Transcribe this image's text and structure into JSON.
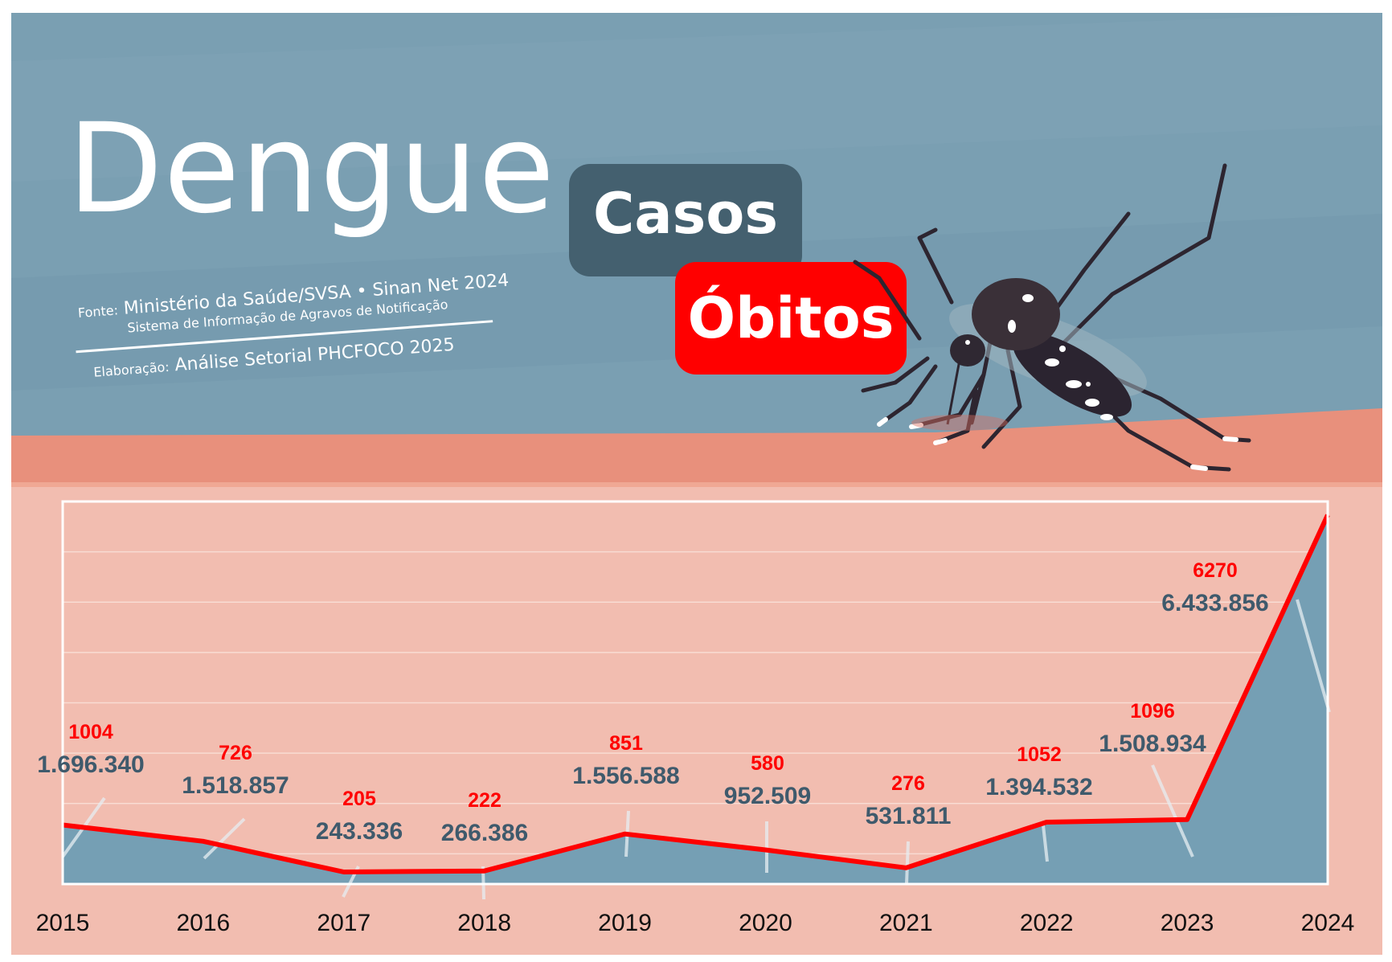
{
  "header": {
    "title": "Dengue",
    "source_prefix": "Fonte:",
    "source": "Ministério da Saúde/SVSA • Sinan Net 2024",
    "source_detail": "Sistema de Informação de Agravos de Notificação",
    "elaboration_prefix": "Elaboração:",
    "elaboration": "Análise Setorial PHCFOCO 2025"
  },
  "legend": {
    "cases_label": "Casos",
    "deaths_label": "Óbitos"
  },
  "colors": {
    "sky": "#7a9fb2",
    "skin_top": "#e8907c",
    "chart_bg": "#f2bdb0",
    "cases_area": "#759fb4",
    "deaths_line": "#ff0000",
    "cases_text": "#3f5a6c",
    "badge_cases": "#44606f",
    "badge_deaths": "#ff0000"
  },
  "illustration": {
    "icon": "aedes-mosquito-icon"
  },
  "chart_data": {
    "type": "area",
    "categories": [
      "2015",
      "2016",
      "2017",
      "2018",
      "2019",
      "2020",
      "2021",
      "2022",
      "2023",
      "2024"
    ],
    "series": [
      {
        "name": "Casos",
        "values": [
          1696340,
          1518857,
          243336,
          266386,
          1556588,
          952509,
          531811,
          1394532,
          1508934,
          6433856
        ],
        "labels": [
          "1.696.340",
          "1.518.857",
          "243.336",
          "266.386",
          "1.556.588",
          "952.509",
          "531.811",
          "1.394.532",
          "1.508.934",
          "6.433.856"
        ]
      },
      {
        "name": "Óbitos",
        "values": [
          1004,
          726,
          205,
          222,
          851,
          580,
          276,
          1052,
          1096,
          6270
        ],
        "labels": [
          "1004",
          "726",
          "205",
          "222",
          "851",
          "580",
          "276",
          "1052",
          "1096",
          "6270"
        ]
      }
    ],
    "grid": true,
    "ylim": [
      0,
      6500
    ]
  }
}
